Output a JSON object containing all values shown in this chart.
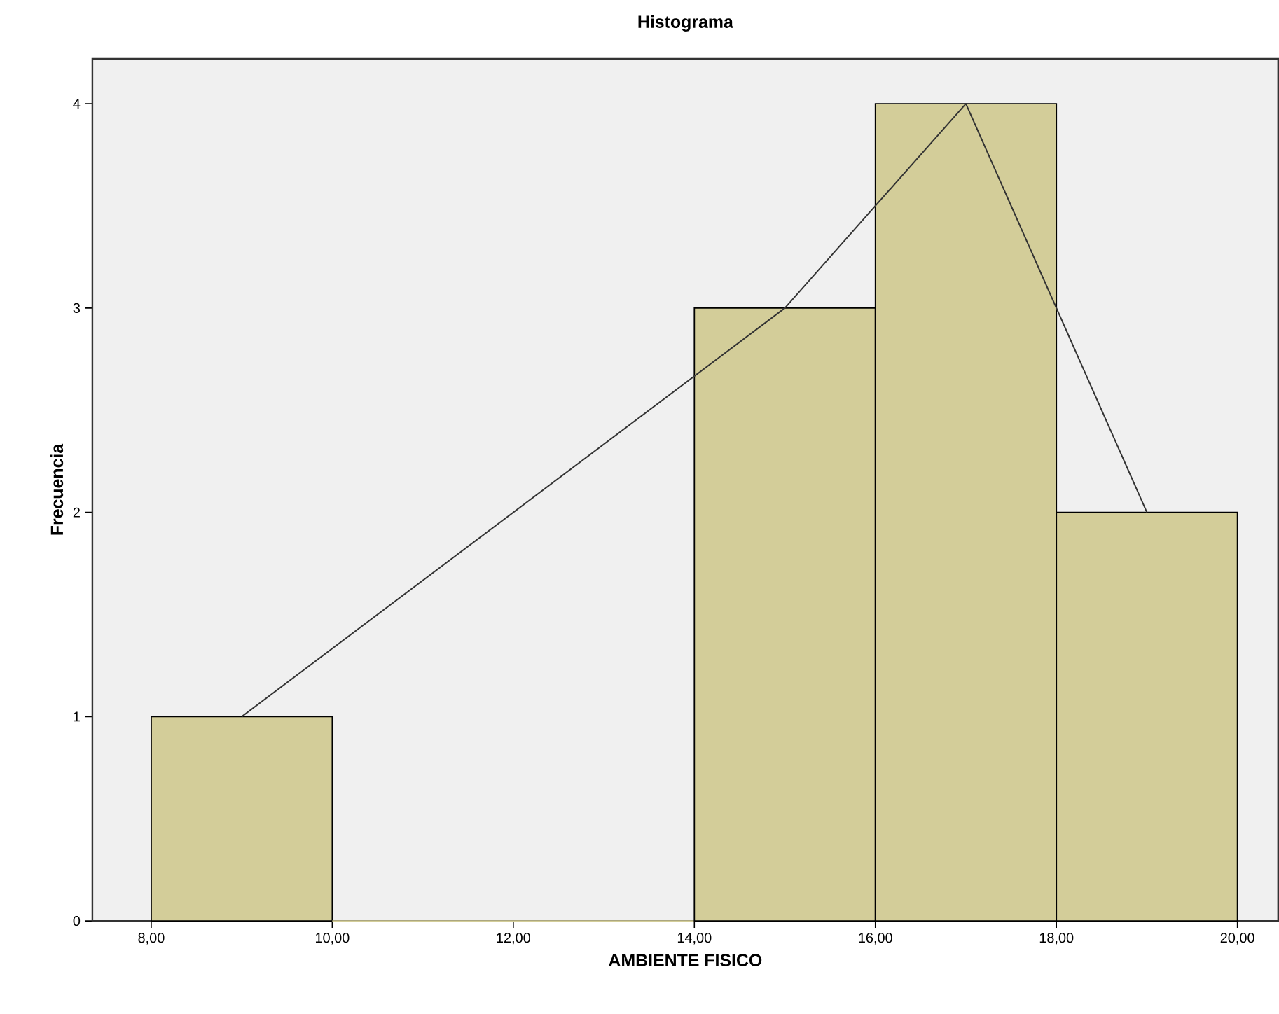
{
  "chart_data": {
    "type": "histogram",
    "title": "Histograma",
    "xlabel": "AMBIENTE FISICO",
    "ylabel": "Frecuencia",
    "series": [
      {
        "color": "#d3cd99",
        "bins": [
          8,
          10,
          12,
          14,
          16,
          18,
          20
        ],
        "values": [
          1,
          0,
          0,
          3,
          4,
          2
        ]
      },
      {
        "type": "line",
        "color": "#333333",
        "x": [
          9,
          15,
          17,
          19
        ],
        "values": [
          1,
          3,
          4,
          2
        ]
      }
    ],
    "xlim": [
      7.35,
      20.45
    ],
    "ylim": [
      0,
      4.22
    ],
    "xticks": [
      {
        "value": 8,
        "label": "8,00"
      },
      {
        "value": 10,
        "label": "10,00"
      },
      {
        "value": 12,
        "label": "12,00"
      },
      {
        "value": 14,
        "label": "14,00"
      },
      {
        "value": 16,
        "label": "16,00"
      },
      {
        "value": 18,
        "label": "18,00"
      },
      {
        "value": 20,
        "label": "20,00"
      }
    ],
    "yticks": [
      0,
      1,
      2,
      3,
      4
    ],
    "grid": false
  }
}
